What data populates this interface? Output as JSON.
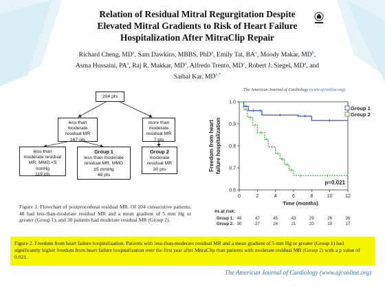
{
  "slide": {
    "title_line1": "Relation of Residual Mitral Regurgitation Despite",
    "title_line2": "Elevated Mitral Gradients to Risk of Heart Failure",
    "title_line3": "Hospitalization After MitraClip Repair",
    "authors_line1": [
      {
        "text": "Richard Cheng, MD",
        "sup": "a"
      },
      {
        "text": ", Sam Dawkins, MBBS, PhD",
        "sup": "a"
      },
      {
        "text": ", Emily Tat, BA",
        "sup": "a"
      },
      {
        "text": ", Moody Makar, MD",
        "sup": "b"
      },
      {
        "text": ",",
        "sup": ""
      }
    ],
    "authors_line2": [
      {
        "text": "Asma Hussaini, PA",
        "sup": "a"
      },
      {
        "text": ", Raj R. Makkar, MD",
        "sup": "a"
      },
      {
        "text": ", Alfredo Trento, MD",
        "sup": "c"
      },
      {
        "text": ", Robert J. Siegel, MD",
        "sup": "a"
      },
      {
        "text": ", and",
        "sup": ""
      }
    ],
    "authors_line3": [
      {
        "text": "Saibal Kar, MD",
        "sup": "a,*"
      }
    ],
    "logo_icon": "crossmark-logo-icon",
    "accent_color": "#2f6fb3",
    "highlight_color": "#f5f500"
  },
  "flowchart": {
    "total": [
      "204 pts"
    ],
    "less_than_moderate": [
      "less than",
      "moderate",
      "residual MR",
      "167 pts"
    ],
    "more_than_moderate": [
      "more than",
      "moderate",
      "residual MR",
      "7 pts"
    ],
    "less_mmg_under5": [
      "less than",
      "moderate residual",
      "MR, MMG <5",
      "mmHg",
      "119 pts"
    ],
    "group1": [
      "Group 1",
      "less than moderate",
      "residual MR, MMG",
      "≥5 mmHg",
      "48 pts"
    ],
    "group2": [
      "Group 2",
      "moderate",
      "residual MR",
      "30 pts"
    ]
  },
  "figure1_caption": "Figure 1.  Flowchart of postprocedural residual MR. Of 204 consecutive patients, 48 had less-than-moderate residual MR and a mean gradient of 5 mm Hg or greater (Group 1), and 30 patients had moderate residual MR (Group 2).",
  "journal_header": {
    "name": "The American Journal of Cardiology",
    "url": "(www.ajconline.org)"
  },
  "chart_data": {
    "type": "line",
    "subtype": "kaplan-meier step",
    "ylabel": "Freedom from heart failure hospitalization",
    "xlabel": "Time (months)",
    "xlim": [
      0,
      12
    ],
    "ylim": [
      0.6,
      1.0
    ],
    "xticks": [
      "0",
      "2",
      "4",
      "6",
      "8",
      "10",
      "12"
    ],
    "yticks": [
      "0.6",
      "0.7",
      "0.8",
      "0.9",
      "1.0"
    ],
    "series": [
      {
        "name": "Group 1",
        "color": "#2b3fa8",
        "style": "solid",
        "x": [
          0,
          0.5,
          1.0,
          2.1,
          2.5,
          6.5,
          8.0,
          12.0
        ],
        "y": [
          1.0,
          0.98,
          0.96,
          0.96,
          0.94,
          0.935,
          0.915,
          0.915
        ]
      },
      {
        "name": "Group 2",
        "color": "#22a022",
        "style": "dashed",
        "x": [
          0,
          0.5,
          0.9,
          1.5,
          2.0,
          2.8,
          3.2,
          4.0,
          4.5,
          5.0,
          5.5,
          6.0,
          7.5,
          12.0
        ],
        "y": [
          1.0,
          0.965,
          0.93,
          0.895,
          0.86,
          0.83,
          0.795,
          0.765,
          0.74,
          0.715,
          0.69,
          0.665,
          0.665,
          0.665
        ]
      }
    ],
    "annotation": "p=0.021",
    "legend_position": "top-right",
    "risk_table": {
      "title": "#s at risk:",
      "rows": [
        {
          "label": "Group 1:",
          "values": [
            "48",
            "47",
            "45",
            "43",
            "29",
            "26",
            "36"
          ]
        },
        {
          "label": "Group 2:",
          "values": [
            "30",
            "27",
            "24",
            "21",
            "20",
            "19",
            "17"
          ]
        }
      ]
    }
  },
  "figure2_caption": "Figure 2.  Freedom from heart failure hospitalization. Patients with less-than-moderate residual MR and a mean gradient of 5 mm Hg or greater (Group 1) had significantly higher freedom from heart failure hospitalization over the first year after MitraClip than patients with moderate residual MR (Group 2) with a p value of 0.021.",
  "journal_footer": {
    "name": "The American Journal of Cardiology",
    "url": "(www.ajconline.org)"
  }
}
